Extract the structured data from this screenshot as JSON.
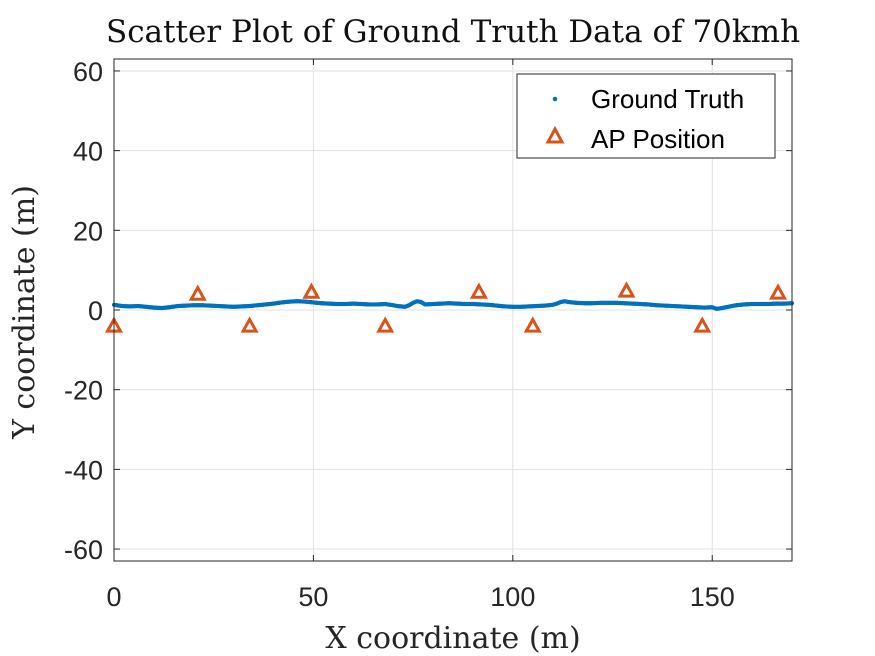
{
  "chart_data": {
    "type": "scatter",
    "title": "Scatter Plot of Ground Truth Data of 70kmh",
    "xlabel": "X coordinate (m)",
    "ylabel": "Y coordinate (m)",
    "xlim": [
      0,
      170
    ],
    "ylim": [
      -63,
      63
    ],
    "xticks": [
      0,
      50,
      100,
      150
    ],
    "yticks": [
      -60,
      -40,
      -20,
      0,
      20,
      40,
      60
    ],
    "grid": true,
    "legend_position": "top-right",
    "series": [
      {
        "name": "Ground Truth",
        "marker": "dot",
        "color": "#0072BD",
        "points": [
          [
            0,
            1.3
          ],
          [
            2,
            1.0
          ],
          [
            4,
            0.9
          ],
          [
            6,
            1.0
          ],
          [
            8,
            0.8
          ],
          [
            10,
            0.6
          ],
          [
            12,
            0.5
          ],
          [
            14,
            0.7
          ],
          [
            16,
            1.0
          ],
          [
            18,
            1.1
          ],
          [
            20,
            1.2
          ],
          [
            22,
            1.2
          ],
          [
            24,
            1.1
          ],
          [
            26,
            1.0
          ],
          [
            28,
            0.9
          ],
          [
            30,
            0.8
          ],
          [
            32,
            0.9
          ],
          [
            34,
            1.0
          ],
          [
            36,
            1.2
          ],
          [
            38,
            1.4
          ],
          [
            40,
            1.6
          ],
          [
            42,
            1.9
          ],
          [
            44,
            2.1
          ],
          [
            46,
            2.2
          ],
          [
            48,
            2.1
          ],
          [
            50,
            1.9
          ],
          [
            52,
            1.7
          ],
          [
            54,
            1.6
          ],
          [
            56,
            1.5
          ],
          [
            58,
            1.5
          ],
          [
            60,
            1.6
          ],
          [
            62,
            1.5
          ],
          [
            64,
            1.4
          ],
          [
            66,
            1.4
          ],
          [
            68,
            1.5
          ],
          [
            70,
            1.2
          ],
          [
            71,
            1.0
          ],
          [
            72,
            0.9
          ],
          [
            73,
            0.8
          ],
          [
            74,
            1.2
          ],
          [
            75,
            1.8
          ],
          [
            76,
            2.2
          ],
          [
            77,
            2.0
          ],
          [
            78,
            1.4
          ],
          [
            80,
            1.5
          ],
          [
            82,
            1.6
          ],
          [
            84,
            1.7
          ],
          [
            86,
            1.6
          ],
          [
            88,
            1.5
          ],
          [
            90,
            1.5
          ],
          [
            92,
            1.4
          ],
          [
            94,
            1.3
          ],
          [
            96,
            1.1
          ],
          [
            98,
            0.9
          ],
          [
            100,
            0.8
          ],
          [
            102,
            0.8
          ],
          [
            104,
            0.9
          ],
          [
            106,
            1.0
          ],
          [
            108,
            1.1
          ],
          [
            110,
            1.3
          ],
          [
            111,
            1.6
          ],
          [
            112,
            2.0
          ],
          [
            113,
            2.2
          ],
          [
            114,
            2.0
          ],
          [
            116,
            1.8
          ],
          [
            118,
            1.7
          ],
          [
            120,
            1.7
          ],
          [
            122,
            1.8
          ],
          [
            124,
            1.8
          ],
          [
            126,
            1.8
          ],
          [
            128,
            1.7
          ],
          [
            130,
            1.6
          ],
          [
            132,
            1.5
          ],
          [
            134,
            1.4
          ],
          [
            136,
            1.2
          ],
          [
            138,
            1.1
          ],
          [
            140,
            1.0
          ],
          [
            142,
            0.9
          ],
          [
            144,
            0.8
          ],
          [
            146,
            0.7
          ],
          [
            148,
            0.6
          ],
          [
            150,
            0.7
          ],
          [
            151,
            0.3
          ],
          [
            152,
            0.4
          ],
          [
            154,
            0.8
          ],
          [
            156,
            1.2
          ],
          [
            158,
            1.4
          ],
          [
            160,
            1.5
          ],
          [
            162,
            1.5
          ],
          [
            164,
            1.5
          ],
          [
            166,
            1.6
          ],
          [
            168,
            1.6
          ],
          [
            170,
            1.7
          ]
        ]
      },
      {
        "name": "AP Position",
        "marker": "triangle",
        "color": "#D95319",
        "points": [
          [
            0,
            -4
          ],
          [
            21,
            4
          ],
          [
            34,
            -4
          ],
          [
            49.5,
            4.5
          ],
          [
            68,
            -4
          ],
          [
            91.5,
            4.5
          ],
          [
            105,
            -4
          ],
          [
            128.5,
            4.8
          ],
          [
            147.5,
            -4
          ],
          [
            166.5,
            4.3
          ]
        ]
      }
    ]
  }
}
